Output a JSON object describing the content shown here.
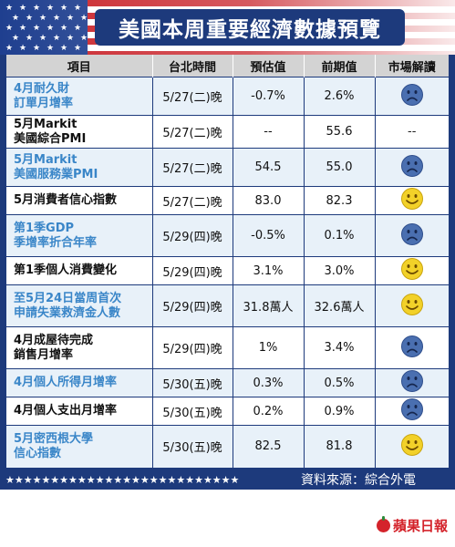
{
  "title": "美國本周重要經濟數據預覽",
  "headers": [
    "項目",
    "台北時間",
    "預估值",
    "前期值",
    "市場解讀"
  ],
  "rows": [
    {
      "item": [
        "4月耐久財",
        "訂單月增率"
      ],
      "time": "5/27(二)晚",
      "forecast": "-0.7%",
      "previous": "2.6%",
      "reading": "sad",
      "style": "blue"
    },
    {
      "item": [
        "5月Markit",
        "美國綜合PMI"
      ],
      "time": "5/27(二)晚",
      "forecast": "--",
      "previous": "55.6",
      "reading": "none",
      "reading_text": "--",
      "style": "white"
    },
    {
      "item": [
        "5月Markit",
        "美國服務業PMI"
      ],
      "time": "5/27(二)晚",
      "forecast": "54.5",
      "previous": "55.0",
      "reading": "sad",
      "style": "blue"
    },
    {
      "item": [
        "5月消費者信心指數"
      ],
      "time": "5/27(二)晚",
      "forecast": "83.0",
      "previous": "82.3",
      "reading": "happy",
      "style": "white"
    },
    {
      "item": [
        "第1季GDP",
        "季增率折合年率"
      ],
      "time": "5/29(四)晚",
      "forecast": "-0.5%",
      "previous": "0.1%",
      "reading": "sad",
      "style": "blue"
    },
    {
      "item": [
        "第1季個人消費變化"
      ],
      "time": "5/29(四)晚",
      "forecast": "3.1%",
      "previous": "3.0%",
      "reading": "happy",
      "style": "white"
    },
    {
      "item": [
        "至5月24日當周首次",
        "申請失業救濟金人數"
      ],
      "time": "5/29(四)晚",
      "forecast": "31.8萬人",
      "previous": "32.6萬人",
      "reading": "happy",
      "style": "blue"
    },
    {
      "item": [
        "4月成屋待完成",
        "銷售月增率"
      ],
      "time": "5/29(四)晚",
      "forecast": "1%",
      "previous": "3.4%",
      "reading": "sad",
      "style": "white"
    },
    {
      "item": [
        "4月個人所得月增率"
      ],
      "time": "5/30(五)晚",
      "forecast": "0.3%",
      "previous": "0.5%",
      "reading": "sad",
      "style": "blue"
    },
    {
      "item": [
        "4月個人支出月增率"
      ],
      "time": "5/30(五)晚",
      "forecast": "0.2%",
      "previous": "0.9%",
      "reading": "sad",
      "style": "white"
    },
    {
      "item": [
        "5月密西根大學",
        "信心指數"
      ],
      "time": "5/30(五)晚",
      "forecast": "82.5",
      "previous": "81.8",
      "reading": "happy",
      "style": "blue"
    }
  ],
  "footer": {
    "stars": "★★★★★★★★★★★★★★★★★★★★★★★★★★",
    "source": "資料來源：綜合外電"
  },
  "brand": "蘋果日報",
  "colors": {
    "navy": "#1d3a7c",
    "header_gray": "#d3d3d3",
    "row_blue": "#e8f1f9",
    "item_blue_text": "#3a86c8",
    "sad_face": "#4a6fb0",
    "happy_face": "#f2d129",
    "brand_red": "#d4232b"
  },
  "icons": {
    "sad": "sad-face-icon",
    "happy": "happy-face-icon"
  }
}
